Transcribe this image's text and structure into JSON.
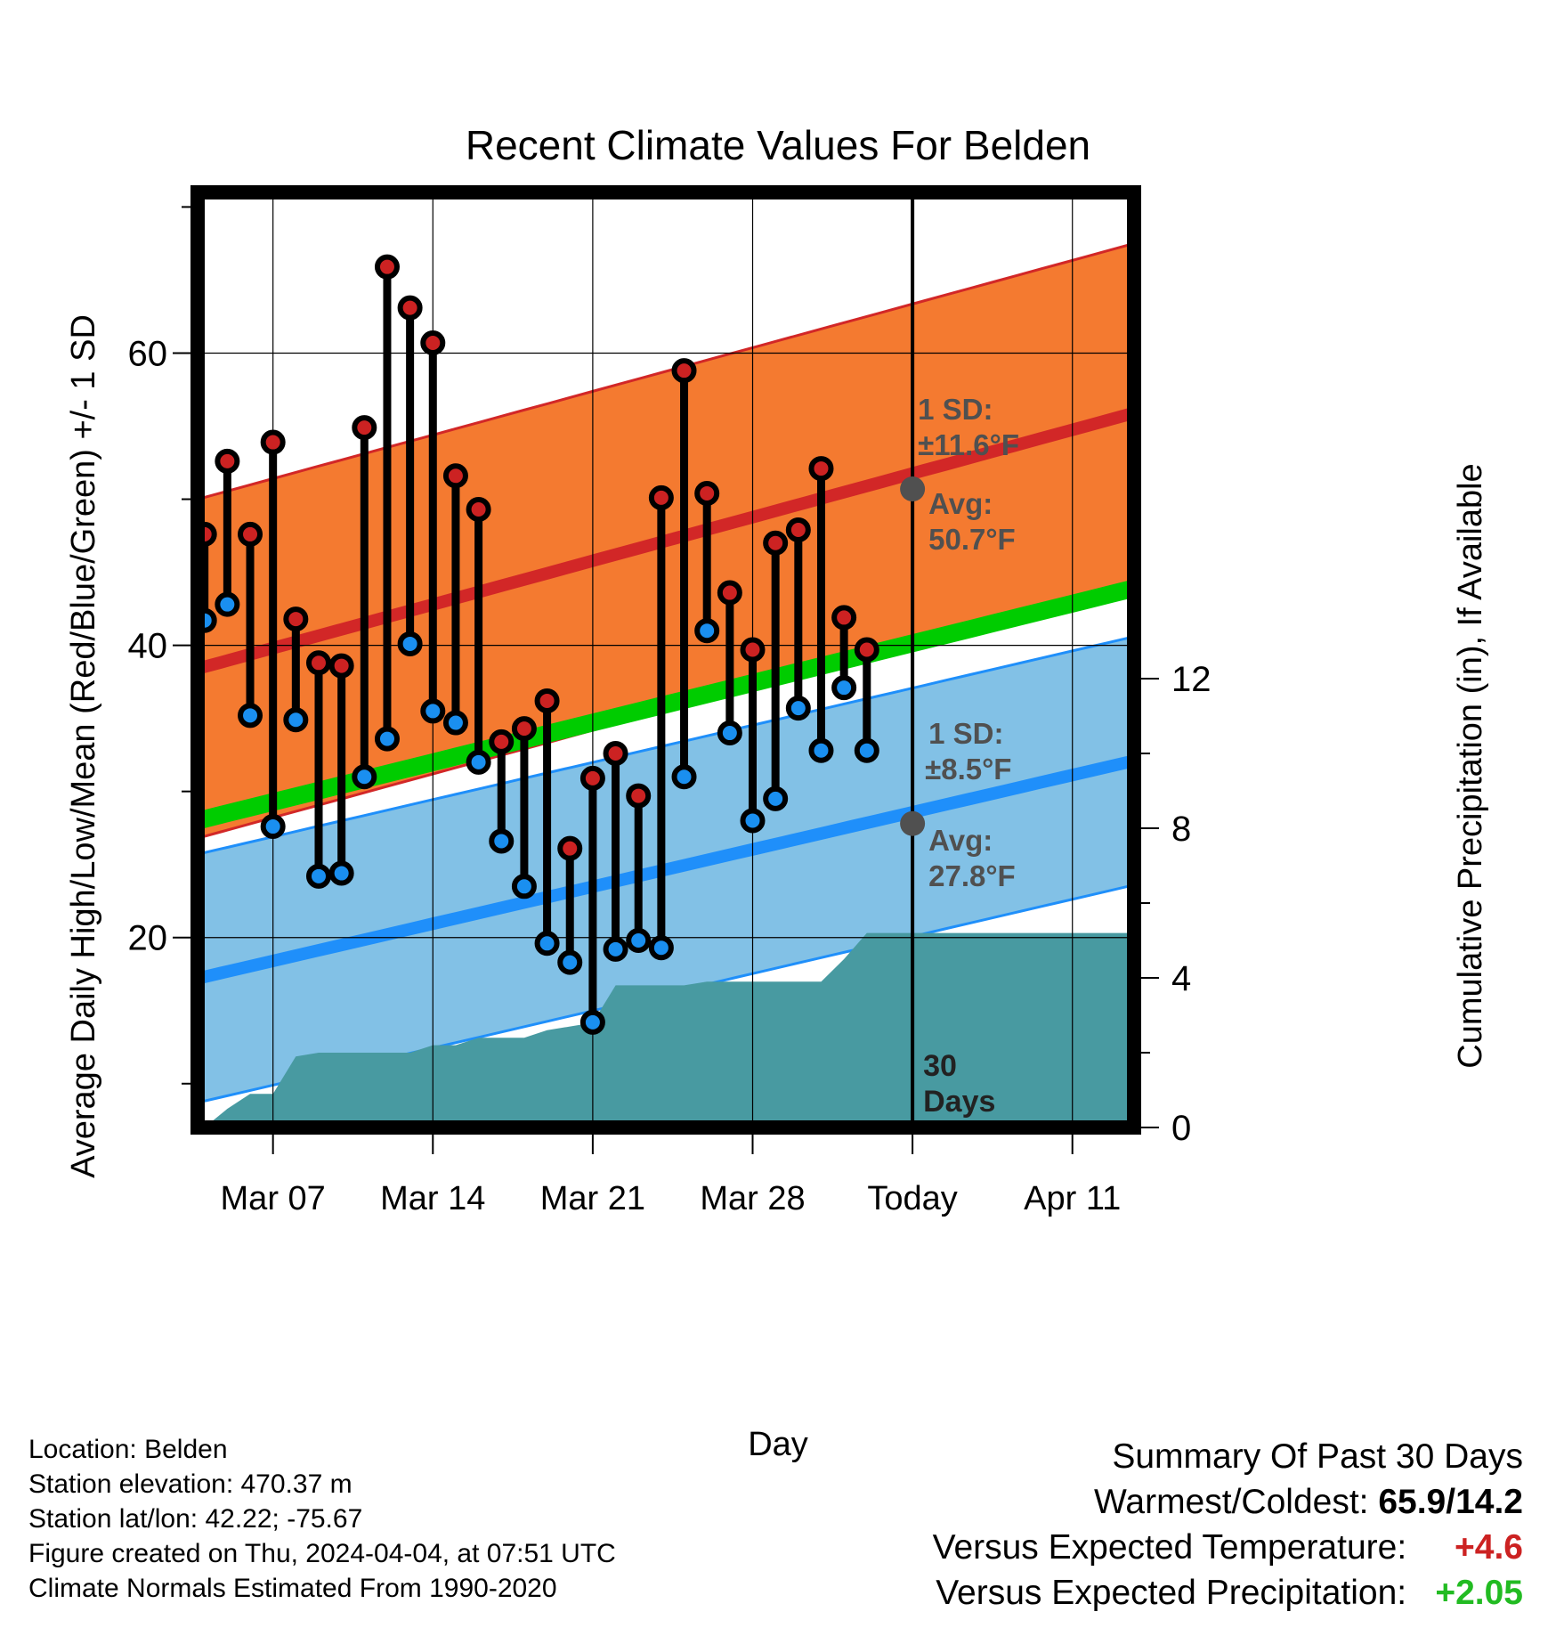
{
  "chart_data": {
    "type": "line",
    "title": "Recent Climate Values For Belden",
    "xlabel": "Day",
    "ylabel": "Average Daily High/Low/Mean (Red/Blue/Green) +/- 1 SD",
    "y2label": "Cumulative Precipitation (in), If Available",
    "x_tick_labels": [
      "Mar 07",
      "Mar 14",
      "Mar 21",
      "Mar 28",
      "Today",
      "Apr 11"
    ],
    "x_ticks_day": [
      4,
      11,
      18,
      25,
      32,
      39
    ],
    "xlim_day": [
      0.7,
      41.7
    ],
    "today_day": 32,
    "y_ticks": [
      20,
      40,
      60
    ],
    "ylim": [
      7,
      71
    ],
    "y2_ticks": [
      0,
      4,
      8,
      12
    ],
    "y2lim": [
      0,
      25
    ],
    "grid": true,
    "normals": {
      "high_mean": [
        38.4,
        55.9
      ],
      "high_sd_label": "1 SD:",
      "high_sd_value": "±11.6°F",
      "high_avg_label": "Avg:",
      "high_avg_value": "50.7°F",
      "high_avg_today": 50.7,
      "high_sd": 11.6,
      "low_mean": [
        17.2,
        32.1
      ],
      "low_sd_label": "1 SD:",
      "low_sd_value": "±8.5°F",
      "low_avg_label": "Avg:",
      "low_avg_value": "27.8°F",
      "low_avg_today": 27.8,
      "low_sd": 8.5,
      "mean_line": [
        28.0,
        43.9
      ]
    },
    "series": [
      {
        "name": "High",
        "days": [
          1,
          2,
          3,
          4,
          5,
          6,
          7,
          8,
          9,
          10,
          11,
          12,
          13,
          14,
          15,
          16,
          17,
          18,
          19,
          20,
          21,
          22,
          23,
          24,
          25,
          26,
          27,
          28,
          29,
          30,
          31
        ],
        "values": [
          47.6,
          52.6,
          47.6,
          53.9,
          41.8,
          38.8,
          38.6,
          54.9,
          65.9,
          63.1,
          60.7,
          51.6,
          49.3,
          33.4,
          34.3,
          36.2,
          26.1,
          30.9,
          32.6,
          29.7,
          50.1,
          58.8,
          50.4,
          43.6,
          39.7,
          47.0,
          47.9,
          52.1,
          41.9,
          39.7,
          null
        ]
      },
      {
        "name": "Low",
        "days": [
          1,
          2,
          3,
          4,
          5,
          6,
          7,
          8,
          9,
          10,
          11,
          12,
          13,
          14,
          15,
          16,
          17,
          18,
          19,
          20,
          21,
          22,
          23,
          24,
          25,
          26,
          27,
          28,
          29,
          30,
          31
        ],
        "values": [
          41.7,
          42.8,
          35.2,
          27.6,
          34.9,
          24.2,
          24.4,
          31.0,
          33.6,
          40.1,
          35.5,
          34.7,
          32.0,
          26.6,
          23.5,
          19.6,
          18.3,
          14.2,
          19.2,
          19.8,
          19.3,
          31.0,
          41.0,
          34.0,
          28.0,
          29.5,
          35.7,
          32.8,
          37.1,
          32.8,
          null
        ]
      },
      {
        "name": "Cumulative Precipitation",
        "days": [
          1,
          2,
          3,
          4,
          5,
          6,
          7,
          8,
          9,
          10,
          11,
          12,
          13,
          14,
          15,
          16,
          17,
          18,
          19,
          20,
          21,
          22,
          23,
          24,
          25,
          26,
          27,
          28,
          29,
          30,
          31,
          32,
          41.7
        ],
        "values": [
          0.0,
          0.5,
          0.9,
          0.9,
          1.9,
          2.0,
          2.0,
          2.0,
          2.0,
          2.0,
          2.2,
          2.2,
          2.4,
          2.4,
          2.4,
          2.6,
          2.7,
          2.8,
          3.8,
          3.8,
          3.8,
          3.8,
          3.9,
          3.9,
          3.9,
          3.9,
          3.9,
          3.9,
          4.5,
          5.2,
          5.2,
          5.2,
          5.2
        ]
      }
    ],
    "today_label_line1": "30",
    "today_label_line2": "Days",
    "colors": {
      "high_band": "#f47a30",
      "high_line": "#d22727",
      "low_band": "#82c1e6",
      "low_line": "#1f8ffa",
      "mean_line": "#00cc00",
      "precip": "#489aa1",
      "high_marker": "#cc2222",
      "low_marker": "#1a8ff0",
      "label_gray": "#505050",
      "anomaly_temp": "#cc2222",
      "anomaly_precip": "#22bb22"
    }
  },
  "info": {
    "location": "Location: Belden",
    "elevation": "Station elevation: 470.37 m",
    "latlon": "Station lat/lon: 42.22; -75.67",
    "created": "Figure created on Thu, 2024-04-04, at 07:51 UTC",
    "normals": "Climate Normals Estimated From 1990-2020"
  },
  "summary": {
    "title": "Summary Of Past 30 Days",
    "warm_cold_label": "Warmest/Coldest:",
    "warm_cold_value": "65.9/14.2",
    "temp_label": "Versus Expected Temperature:",
    "temp_value": "+4.6",
    "precip_label": "Versus Expected Precipitation:",
    "precip_value": "+2.05"
  }
}
